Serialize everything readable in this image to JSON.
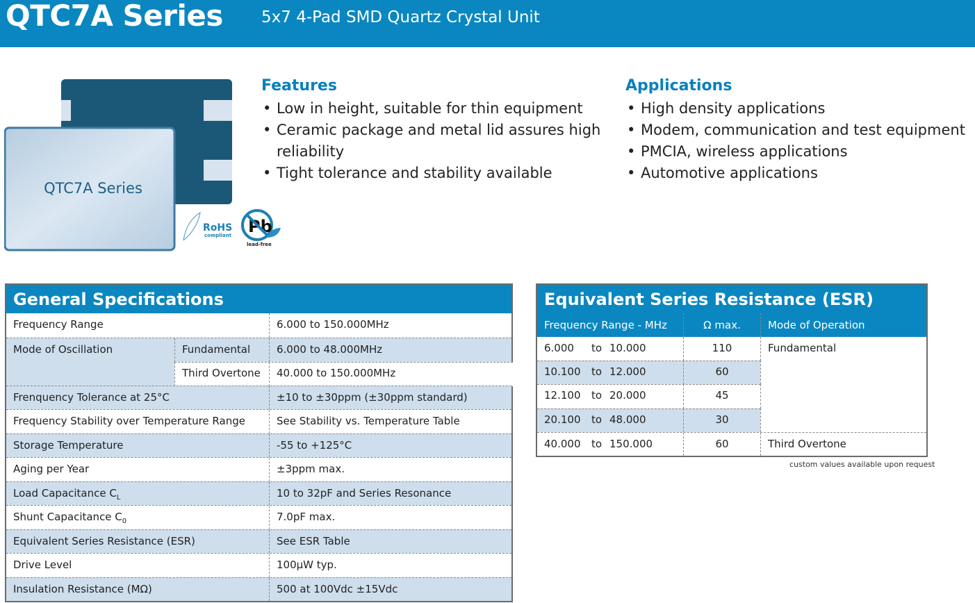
{
  "header": {
    "title": "QTC7A Series",
    "subtitle": "5x7 4-Pad SMD Quartz Crystal Unit",
    "color": "#0a87c0"
  },
  "product_image": {
    "label": "QTC7A Series",
    "rohs_logo": "RoHS compliant",
    "pb_logo": "Pb lead-free"
  },
  "features": {
    "title": "Features",
    "items": [
      "Low in height, suitable for thin equipment",
      "Ceramic package and metal lid assures high reliability",
      "Tight tolerance and stability available"
    ]
  },
  "applications": {
    "title": "Applications",
    "items": [
      "High density applications",
      "Modem, communication and test equipment",
      "PMCIA, wireless applications",
      "Automotive applications"
    ]
  },
  "general_specs": {
    "title": "General Specifications",
    "rows": [
      {
        "label": "Frequency Range",
        "value": "6.000 to 150.000MHz"
      },
      {
        "label": "Mode of Oscillation",
        "sub1": "Fundamental",
        "value1": "6.000 to 48.000MHz",
        "sub2": "Third Overtone",
        "value2": "40.000 to 150.000MHz"
      },
      {
        "label": "Frenquency Tolerance at 25°C",
        "value": "±10 to ±30ppm (±30ppm standard)"
      },
      {
        "label": "Frequency Stability over Temperature Range",
        "value": "See Stability vs. Temperature Table"
      },
      {
        "label": "Storage Temperature",
        "value": "-55 to +125°C"
      },
      {
        "label": "Aging per Year",
        "value": "±3ppm max."
      },
      {
        "label": "Load Capacitance C",
        "label_sub": "L",
        "value": "10 to 32pF and Series Resonance"
      },
      {
        "label": "Shunt Capacitance C",
        "label_sub": "0",
        "value": "7.0pF max."
      },
      {
        "label": "Equivalent Series Resistance (ESR)",
        "value": "See ESR Table"
      },
      {
        "label": "Drive Level",
        "value": "100µW typ."
      },
      {
        "label": "Insulation Resistance (MΩ)",
        "value": "500 at 100Vdc ±15Vdc"
      }
    ]
  },
  "esr": {
    "title": "Equivalent Series Resistance (ESR)",
    "columns": [
      "Frequency Range - MHz",
      "Ω max.",
      "Mode of Operation"
    ],
    "rows": [
      {
        "from": "6.000",
        "to": "to",
        "until": "10.000",
        "ohm": "110",
        "mode": "Fundamental"
      },
      {
        "from": "10.100",
        "to": "to",
        "until": "12.000",
        "ohm": "60"
      },
      {
        "from": "12.100",
        "to": "to",
        "until": "20.000",
        "ohm": "45"
      },
      {
        "from": "20.100",
        "to": "to",
        "until": "48.000",
        "ohm": "30"
      },
      {
        "from": "40.000",
        "to": "to",
        "until": "150.000",
        "ohm": "60",
        "mode": "Third Overtone"
      }
    ],
    "note": "custom values available upon request"
  }
}
